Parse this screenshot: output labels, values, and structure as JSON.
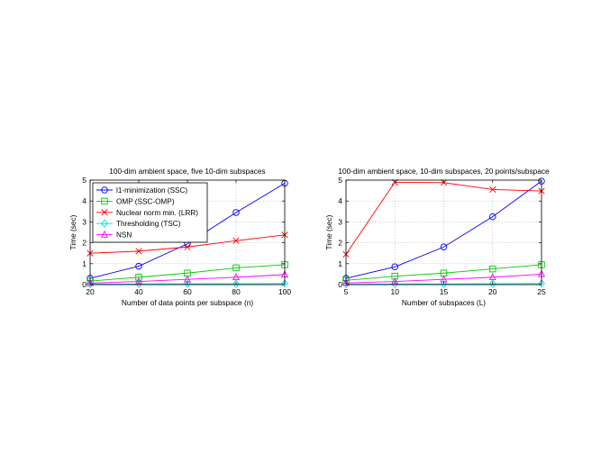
{
  "chart_data": [
    {
      "type": "line",
      "title": "100-dim ambient space, five 10-dim subspaces",
      "xlabel": "Number of data points per subspace (n)",
      "ylabel": "Time (sec)",
      "xlim": [
        20,
        100
      ],
      "ylim": [
        0,
        5
      ],
      "xticks": [
        20,
        40,
        60,
        80,
        100
      ],
      "yticks": [
        0,
        1,
        2,
        3,
        4,
        5
      ],
      "grid": true,
      "legend": "top-left",
      "x": [
        20,
        40,
        60,
        80,
        100
      ],
      "series": [
        {
          "name": "l1-minimization (SSC)",
          "color": "#0000ff",
          "marker": "circle",
          "values": [
            0.3,
            0.88,
            1.95,
            3.45,
            4.85
          ]
        },
        {
          "name": "OMP (SSC-OMP)",
          "color": "#00cc00",
          "marker": "square",
          "values": [
            0.17,
            0.35,
            0.55,
            0.8,
            0.95
          ]
        },
        {
          "name": "Nuclear norm min. (LRR)",
          "color": "#ff0000",
          "marker": "x",
          "values": [
            1.5,
            1.6,
            1.8,
            2.1,
            2.38
          ]
        },
        {
          "name": "Thresholding (TSC)",
          "color": "#00dddd",
          "marker": "diamond",
          "values": [
            0.02,
            0.03,
            0.04,
            0.04,
            0.05
          ]
        },
        {
          "name": "NSN",
          "color": "#ff00ff",
          "marker": "triangle",
          "values": [
            0.07,
            0.15,
            0.25,
            0.35,
            0.48
          ]
        }
      ]
    },
    {
      "type": "line",
      "title": "100-dim ambient space, 10-dim subspaces, 20 points/subspace",
      "xlabel": "Number of subspaces (L)",
      "ylabel": "Time (sec)",
      "xlim": [
        5,
        25
      ],
      "ylim": [
        0,
        5
      ],
      "xticks": [
        5,
        10,
        15,
        20,
        25
      ],
      "yticks": [
        0,
        1,
        2,
        3,
        4,
        5
      ],
      "grid": true,
      "x": [
        5,
        10,
        15,
        20,
        25
      ],
      "series": [
        {
          "color": "#0000ff",
          "marker": "circle",
          "values": [
            0.3,
            0.85,
            1.8,
            3.25,
            4.95
          ]
        },
        {
          "color": "#00cc00",
          "marker": "square",
          "values": [
            0.2,
            0.4,
            0.55,
            0.75,
            0.95
          ]
        },
        {
          "color": "#ff0000",
          "marker": "x",
          "values": [
            1.45,
            4.9,
            4.88,
            4.55,
            4.48
          ]
        },
        {
          "color": "#00dddd",
          "marker": "diamond",
          "values": [
            0.02,
            0.03,
            0.03,
            0.04,
            0.05
          ]
        },
        {
          "color": "#ff00ff",
          "marker": "triangle",
          "values": [
            0.08,
            0.15,
            0.25,
            0.35,
            0.5
          ]
        }
      ]
    }
  ]
}
